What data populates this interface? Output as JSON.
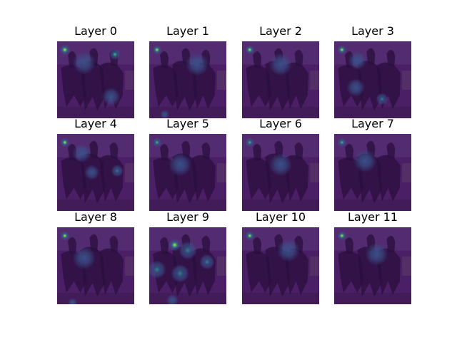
{
  "chart_data": {
    "type": "heatmap",
    "panels": [
      {
        "title": "Layer 0",
        "hotspots": [
          {
            "x": 0.1,
            "y": 0.11,
            "intensity": 0.95,
            "spread": 0.07
          },
          {
            "x": 0.75,
            "y": 0.17,
            "intensity": 0.85,
            "spread": 0.07
          },
          {
            "x": 0.35,
            "y": 0.28,
            "intensity": 0.3,
            "spread": 0.15
          },
          {
            "x": 0.7,
            "y": 0.72,
            "intensity": 0.25,
            "spread": 0.12
          }
        ]
      },
      {
        "title": "Layer 1",
        "hotspots": [
          {
            "x": 0.1,
            "y": 0.11,
            "intensity": 0.9,
            "spread": 0.06
          },
          {
            "x": 0.62,
            "y": 0.3,
            "intensity": 0.15,
            "spread": 0.15
          },
          {
            "x": 0.2,
            "y": 0.95,
            "intensity": 0.25,
            "spread": 0.06
          }
        ]
      },
      {
        "title": "Layer 2",
        "hotspots": [
          {
            "x": 0.1,
            "y": 0.11,
            "intensity": 0.9,
            "spread": 0.06
          },
          {
            "x": 0.5,
            "y": 0.3,
            "intensity": 0.12,
            "spread": 0.15
          }
        ]
      },
      {
        "title": "Layer 3",
        "hotspots": [
          {
            "x": 0.1,
            "y": 0.11,
            "intensity": 0.9,
            "spread": 0.06
          },
          {
            "x": 0.3,
            "y": 0.25,
            "intensity": 0.35,
            "spread": 0.12
          },
          {
            "x": 0.28,
            "y": 0.6,
            "intensity": 0.3,
            "spread": 0.12
          },
          {
            "x": 0.62,
            "y": 0.75,
            "intensity": 0.45,
            "spread": 0.08
          }
        ]
      },
      {
        "title": "Layer 4",
        "hotspots": [
          {
            "x": 0.1,
            "y": 0.11,
            "intensity": 0.95,
            "spread": 0.06
          },
          {
            "x": 0.32,
            "y": 0.25,
            "intensity": 0.35,
            "spread": 0.12
          },
          {
            "x": 0.45,
            "y": 0.5,
            "intensity": 0.35,
            "spread": 0.1
          },
          {
            "x": 0.78,
            "y": 0.48,
            "intensity": 0.4,
            "spread": 0.08
          }
        ]
      },
      {
        "title": "Layer 5",
        "hotspots": [
          {
            "x": 0.1,
            "y": 0.11,
            "intensity": 0.85,
            "spread": 0.06
          },
          {
            "x": 0.4,
            "y": 0.4,
            "intensity": 0.2,
            "spread": 0.15
          }
        ]
      },
      {
        "title": "Layer 6",
        "hotspots": [
          {
            "x": 0.1,
            "y": 0.11,
            "intensity": 0.85,
            "spread": 0.06
          },
          {
            "x": 0.5,
            "y": 0.4,
            "intensity": 0.12,
            "spread": 0.15
          }
        ]
      },
      {
        "title": "Layer 7",
        "hotspots": [
          {
            "x": 0.1,
            "y": 0.11,
            "intensity": 0.85,
            "spread": 0.06
          },
          {
            "x": 0.4,
            "y": 0.35,
            "intensity": 0.15,
            "spread": 0.15
          }
        ]
      },
      {
        "title": "Layer 8",
        "hotspots": [
          {
            "x": 0.1,
            "y": 0.11,
            "intensity": 0.95,
            "spread": 0.06
          },
          {
            "x": 0.35,
            "y": 0.4,
            "intensity": 0.25,
            "spread": 0.15
          },
          {
            "x": 0.2,
            "y": 0.98,
            "intensity": 0.25,
            "spread": 0.06
          }
        ]
      },
      {
        "title": "Layer 9",
        "hotspots": [
          {
            "x": 0.33,
            "y": 0.23,
            "intensity": 1.0,
            "spread": 0.08
          },
          {
            "x": 0.5,
            "y": 0.3,
            "intensity": 0.55,
            "spread": 0.12
          },
          {
            "x": 0.1,
            "y": 0.55,
            "intensity": 0.55,
            "spread": 0.12
          },
          {
            "x": 0.4,
            "y": 0.6,
            "intensity": 0.45,
            "spread": 0.12
          },
          {
            "x": 0.75,
            "y": 0.45,
            "intensity": 0.4,
            "spread": 0.1
          },
          {
            "x": 0.3,
            "y": 0.95,
            "intensity": 0.3,
            "spread": 0.08
          }
        ]
      },
      {
        "title": "Layer 10",
        "hotspots": [
          {
            "x": 0.1,
            "y": 0.11,
            "intensity": 0.9,
            "spread": 0.06
          },
          {
            "x": 0.6,
            "y": 0.3,
            "intensity": 0.12,
            "spread": 0.15
          }
        ]
      },
      {
        "title": "Layer 11",
        "hotspots": [
          {
            "x": 0.1,
            "y": 0.11,
            "intensity": 0.9,
            "spread": 0.06
          },
          {
            "x": 0.55,
            "y": 0.35,
            "intensity": 0.12,
            "spread": 0.15
          }
        ]
      }
    ],
    "colormap": [
      "#440154",
      "#3b528b",
      "#21908d",
      "#5dc963",
      "#fde725"
    ],
    "overlay_base_color": "#4b1f66",
    "background_color": "#ffffff"
  }
}
